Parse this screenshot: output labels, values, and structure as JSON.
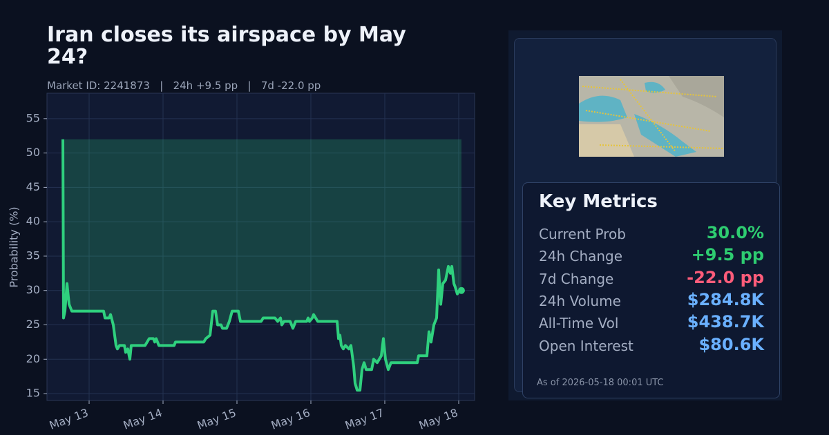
{
  "chart_data": {
    "type": "line",
    "title": "Iran closes its airspace by May 24?",
    "subtitle": "Market ID: 2241873   |   24h +9.5 pp   |   7d -22.0 pp",
    "y_label": "Probability (%)",
    "color": "#2fd07e",
    "x": [
      12.645,
      12.654,
      12.673,
      12.701,
      12.729,
      12.766,
      13.196,
      13.215,
      13.271,
      13.29,
      13.327,
      13.364,
      13.383,
      13.411,
      13.477,
      13.495,
      13.523,
      13.551,
      13.57,
      13.757,
      13.785,
      13.813,
      13.869,
      13.888,
      13.907,
      13.944,
      14.15,
      14.168,
      14.551,
      14.579,
      14.636,
      14.673,
      14.71,
      14.738,
      14.785,
      14.804,
      14.86,
      14.897,
      14.935,
      15.019,
      15.047,
      15.327,
      15.355,
      15.514,
      15.551,
      15.589,
      15.607,
      15.636,
      15.72,
      15.757,
      15.794,
      15.944,
      15.963,
      15.981,
      16.019,
      16.037,
      16.093,
      16.355,
      16.374,
      16.393,
      16.411,
      16.439,
      16.467,
      16.514,
      16.542,
      16.579,
      16.598,
      16.626,
      16.664,
      16.692,
      16.72,
      16.748,
      16.822,
      16.85,
      16.897,
      16.953,
      16.981,
      17.009,
      17.047,
      17.084,
      17.439,
      17.458,
      17.57,
      17.598,
      17.626,
      17.664,
      17.701,
      17.729,
      17.757,
      17.785,
      17.822,
      17.86,
      17.888,
      17.907,
      17.935,
      17.953,
      17.981,
      18.009,
      18.037
    ],
    "values": [
      52,
      26,
      27,
      31,
      28,
      27,
      27,
      26,
      26,
      26.5,
      25,
      22,
      21.5,
      22,
      22,
      21,
      21.5,
      20,
      22,
      22,
      22.5,
      23,
      23,
      22.5,
      23,
      22,
      22,
      22.5,
      22.5,
      23,
      23.5,
      27,
      27,
      25,
      25,
      24.5,
      24.5,
      25.5,
      27,
      27,
      25.5,
      25.5,
      26,
      26,
      25.5,
      26,
      25,
      25.5,
      25.5,
      24.5,
      25.5,
      25.5,
      26,
      25.5,
      26,
      26.5,
      25.5,
      25.5,
      23,
      23.5,
      22,
      21.5,
      22,
      21.5,
      22,
      19,
      16.5,
      15.5,
      15.5,
      18.5,
      19.5,
      18.5,
      18.5,
      20,
      19.5,
      20.5,
      23,
      20,
      18.5,
      19.5,
      19.5,
      20.5,
      20.5,
      24,
      22.5,
      25,
      26,
      33,
      28,
      31,
      31.5,
      33.5,
      32.5,
      33.5,
      31,
      30.5,
      29.5,
      30,
      30
    ],
    "xlim": [
      12.43,
      18.215
    ],
    "xticks": [
      {
        "value": 13,
        "label": "May 13"
      },
      {
        "value": 14,
        "label": "May 14"
      },
      {
        "value": 15,
        "label": "May 15"
      },
      {
        "value": 16,
        "label": "May 16"
      },
      {
        "value": 17,
        "label": "May 17"
      },
      {
        "value": 18,
        "label": "May 18"
      }
    ],
    "ylim": [
      14,
      58.7
    ],
    "yticks": [
      15,
      20,
      25,
      30,
      35,
      40,
      45,
      50,
      55
    ],
    "grid": true
  },
  "panel": {
    "title": "Key Metrics",
    "metrics": [
      {
        "label": "Current Prob",
        "value": "30.0%",
        "color": "#2ecc71"
      },
      {
        "label": "24h Change",
        "value": "+9.5 pp",
        "color": "#2ecc71"
      },
      {
        "label": "7d Change",
        "value": "-22.0 pp",
        "color": "#ff5c7a"
      },
      {
        "label": "24h Volume",
        "value": "$284.8K",
        "color": "#6ab0ff"
      },
      {
        "label": "All-Time Vol",
        "value": "$438.7K",
        "color": "#6ab0ff"
      },
      {
        "label": "Open Interest",
        "value": "$80.6K",
        "color": "#6ab0ff"
      }
    ],
    "footer": "As of 2026-05-18 00:01 UTC"
  }
}
